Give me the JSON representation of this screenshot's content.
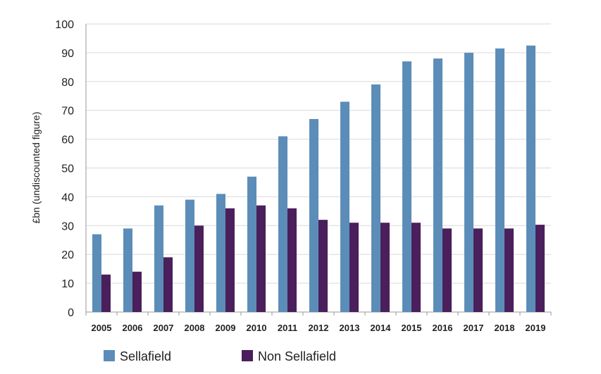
{
  "chart_data": {
    "type": "bar",
    "title": "",
    "xlabel": "",
    "ylabel": "£bn (undiscounted figure)",
    "ylim": [
      0,
      100
    ],
    "yticks": [
      0,
      10,
      20,
      30,
      40,
      50,
      60,
      70,
      80,
      90,
      100
    ],
    "grid": true,
    "legend_position": "bottom",
    "categories": [
      "2005",
      "2006",
      "2007",
      "2008",
      "2009",
      "2010",
      "2011",
      "2012",
      "2013",
      "2014",
      "2015",
      "2016",
      "2017",
      "2018",
      "2019"
    ],
    "series": [
      {
        "name": "Sellafield",
        "color": "#5b8db8",
        "values": [
          27,
          29,
          37,
          39,
          41,
          47,
          61,
          67,
          73,
          79,
          87,
          88,
          90,
          91.5,
          92.5
        ]
      },
      {
        "name": "Non Sellafield",
        "color": "#4a1f5c",
        "values": [
          13,
          14,
          19,
          30,
          36,
          37,
          36,
          32,
          31,
          31,
          31,
          29,
          29,
          29,
          30.3
        ]
      }
    ]
  }
}
